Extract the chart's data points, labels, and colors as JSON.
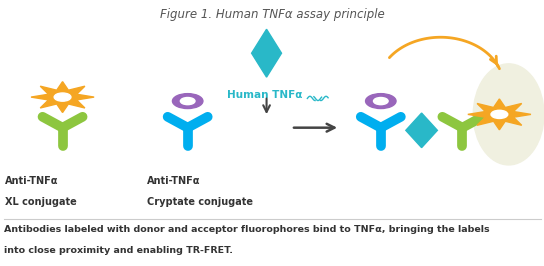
{
  "title": "Figure 1. Human TNFα assay principle",
  "caption_line1": "Antibodies labeled with donor and acceptor fluorophores bind to TNFα, bringing the labels",
  "caption_line2": "into close proximity and enabling TR-FRET.",
  "label_antixl_line1": "Anti-TNFα",
  "label_antixl_line2": "XL conjugate",
  "label_anticrypt_line1": "Anti-TNFα",
  "label_anticrypt_line2": "Cryptate conjugate",
  "label_tnfa": "Human TNFα",
  "color_orange": "#F5A623",
  "color_green": "#8DC63F",
  "color_blue": "#00AEEF",
  "color_teal": "#29B8C8",
  "color_purple": "#9966BB",
  "color_title": "#555555",
  "color_caption": "#333333",
  "color_teal_label": "#29B8C8",
  "bg_color": "#FFFFFF",
  "arrow_color": "#444444"
}
